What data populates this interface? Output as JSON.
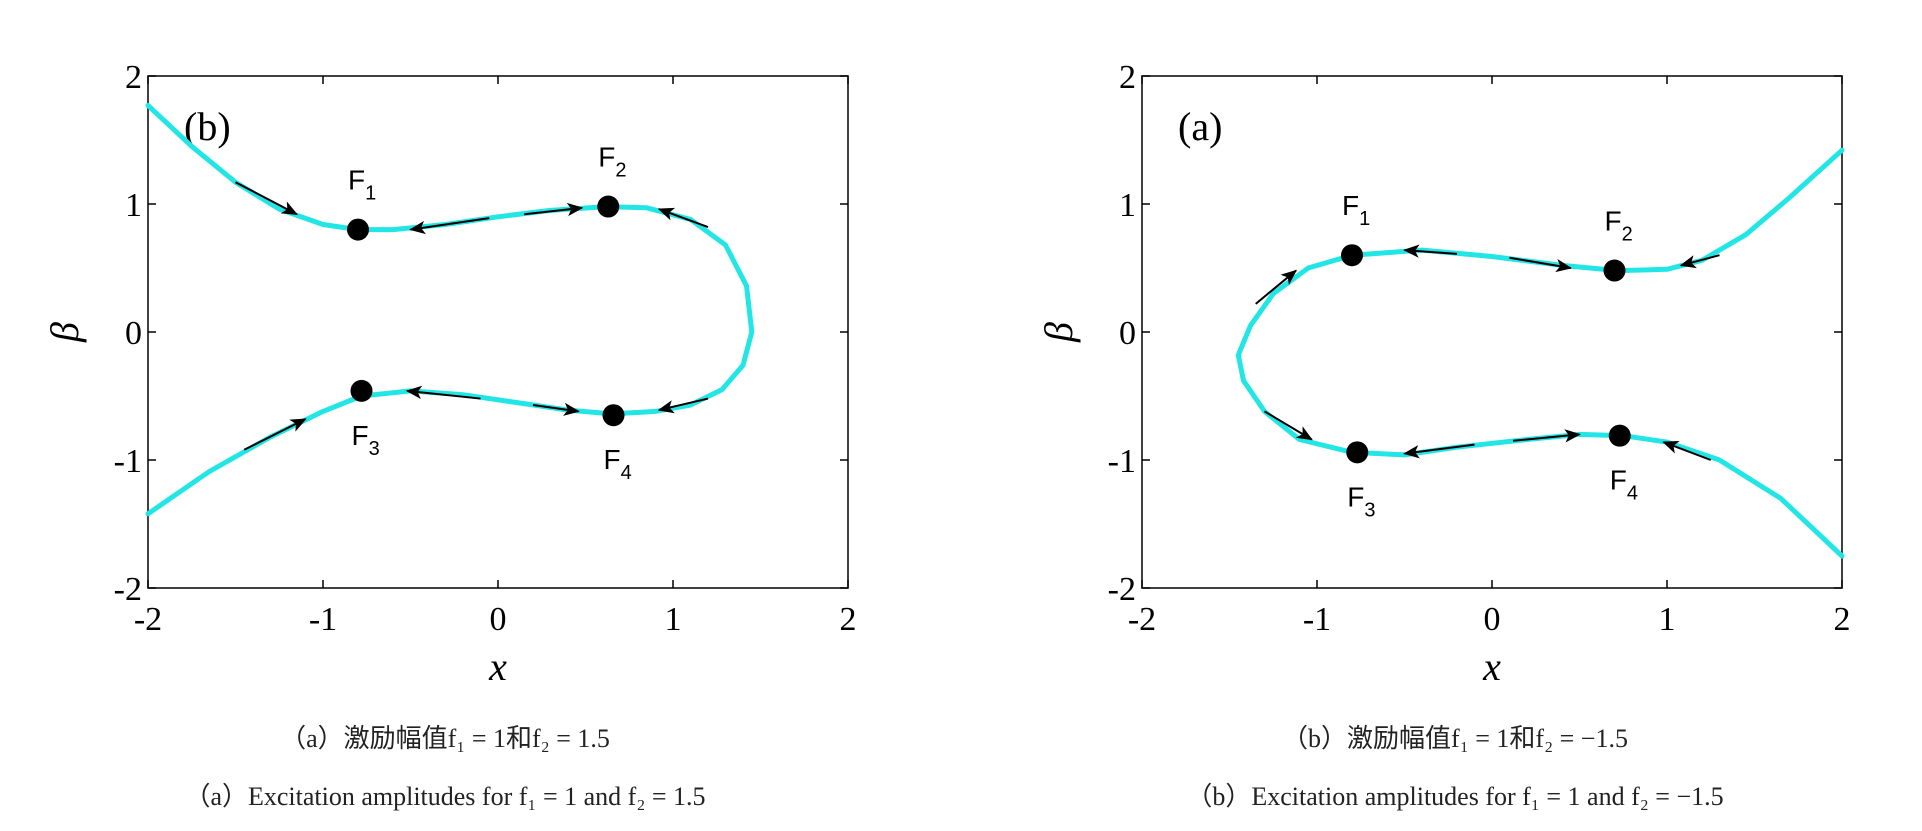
{
  "chart_data": [
    {
      "type": "line",
      "panel_label": "(b)",
      "xlabel": "x",
      "ylabel": "β",
      "xlim": [
        -2,
        2
      ],
      "ylim": [
        -2,
        2
      ],
      "xticks": [
        "-2",
        "-1",
        "0",
        "1",
        "2"
      ],
      "yticks": [
        "2",
        "1",
        "0",
        "-1",
        "-2"
      ],
      "grid": false,
      "line_color": "#22e5e5",
      "series": [
        {
          "values": [
            [
              -2,
              1.77
            ],
            [
              -1.75,
              1.45
            ],
            [
              -1.5,
              1.17
            ],
            [
              -1.25,
              0.96
            ],
            [
              -1.0,
              0.84
            ],
            [
              -0.8,
              0.8
            ],
            [
              -0.6,
              0.8
            ],
            [
              -0.3,
              0.84
            ],
            [
              0.0,
              0.9
            ],
            [
              0.3,
              0.95
            ],
            [
              0.62,
              0.98
            ],
            [
              0.85,
              0.97
            ],
            [
              1.1,
              0.88
            ],
            [
              1.3,
              0.68
            ],
            [
              1.42,
              0.36
            ],
            [
              1.45,
              0.0
            ],
            [
              1.4,
              -0.26
            ],
            [
              1.28,
              -0.45
            ],
            [
              1.1,
              -0.57
            ],
            [
              0.9,
              -0.62
            ],
            [
              0.65,
              -0.64
            ],
            [
              0.4,
              -0.61
            ],
            [
              0.1,
              -0.55
            ],
            [
              -0.2,
              -0.49
            ],
            [
              -0.5,
              -0.46
            ],
            [
              -0.78,
              -0.5
            ],
            [
              -1.0,
              -0.62
            ],
            [
              -1.3,
              -0.82
            ],
            [
              -1.65,
              -1.09
            ],
            [
              -2,
              -1.42
            ]
          ]
        }
      ],
      "points": [
        {
          "name": "F",
          "sub": "1",
          "x": -0.8,
          "y": 0.8
        },
        {
          "name": "F",
          "sub": "2",
          "x": 0.63,
          "y": 0.98
        },
        {
          "name": "F",
          "sub": "3",
          "x": -0.78,
          "y": -0.46
        },
        {
          "name": "F",
          "sub": "4",
          "x": 0.66,
          "y": -0.65
        }
      ]
    },
    {
      "type": "line",
      "panel_label": "(a)",
      "xlabel": "x",
      "ylabel": "β",
      "xlim": [
        -2,
        2
      ],
      "ylim": [
        -2,
        2
      ],
      "xticks": [
        "-2",
        "-1",
        "0",
        "1",
        "2"
      ],
      "yticks": [
        "2",
        "1",
        "0",
        "-1",
        "-2"
      ],
      "grid": false,
      "line_color": "#22e5e5",
      "series": [
        {
          "values": [
            [
              2,
              1.42
            ],
            [
              1.7,
              1.05
            ],
            [
              1.45,
              0.76
            ],
            [
              1.2,
              0.56
            ],
            [
              1.0,
              0.49
            ],
            [
              0.72,
              0.48
            ],
            [
              0.4,
              0.52
            ],
            [
              0.0,
              0.59
            ],
            [
              -0.4,
              0.64
            ],
            [
              -0.8,
              0.6
            ],
            [
              -1.05,
              0.5
            ],
            [
              -1.25,
              0.3
            ],
            [
              -1.38,
              0.05
            ],
            [
              -1.45,
              -0.18
            ],
            [
              -1.42,
              -0.38
            ],
            [
              -1.3,
              -0.62
            ],
            [
              -1.1,
              -0.84
            ],
            [
              -0.8,
              -0.94
            ],
            [
              -0.5,
              -0.96
            ],
            [
              -0.2,
              -0.9
            ],
            [
              0.2,
              -0.84
            ],
            [
              0.5,
              -0.8
            ],
            [
              0.75,
              -0.81
            ],
            [
              1.0,
              -0.86
            ],
            [
              1.3,
              -1.0
            ],
            [
              1.65,
              -1.3
            ],
            [
              2,
              -1.75
            ]
          ]
        }
      ],
      "points": [
        {
          "name": "F",
          "sub": "1",
          "x": -0.8,
          "y": 0.6
        },
        {
          "name": "F",
          "sub": "2",
          "x": 0.7,
          "y": 0.48
        },
        {
          "name": "F",
          "sub": "3",
          "x": -0.77,
          "y": -0.94
        },
        {
          "name": "F",
          "sub": "4",
          "x": 0.73,
          "y": -0.81
        }
      ]
    }
  ],
  "captions": {
    "left_cn": "（a）激励幅值f₁ = 1和f₂ = 1.5",
    "left_en": "（a）Excitation amplitudes for f₁ = 1 and f₂ = 1.5",
    "right_cn": "（b）激励幅值f₁ = 1和f₂ = −1.5",
    "right_en": "（b）Excitation amplitudes for f₁ = 1 and f₂ = −1.5"
  }
}
